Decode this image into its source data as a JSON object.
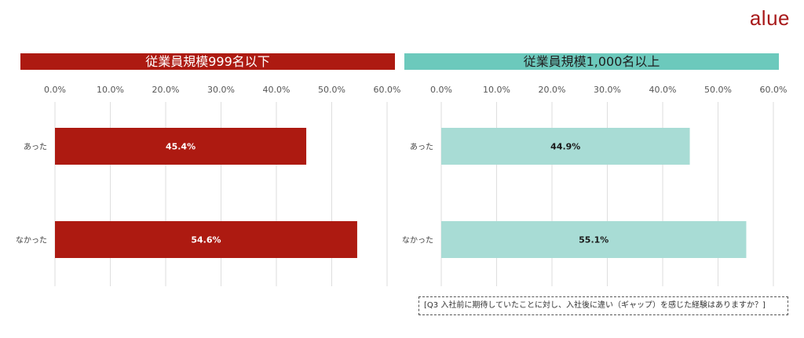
{
  "brand": {
    "logo_text": "alue"
  },
  "note": "[Q3 入社前に期待していたことに対し、入社後に違い（ギャップ）を感じた経験はありますか？]",
  "chart_data": [
    {
      "type": "bar",
      "orientation": "horizontal",
      "title": "従業員規模999名以下",
      "categories": [
        "あった",
        "なかった"
      ],
      "values": [
        45.4,
        54.6
      ],
      "data_labels": [
        "45.4%",
        "54.6%"
      ],
      "xlim": [
        0,
        60
      ],
      "xticks": [
        "0.0%",
        "10.0%",
        "20.0%",
        "30.0%",
        "40.0%",
        "50.0%",
        "60.0%"
      ],
      "grid": true,
      "bar_color": "#ad1a11",
      "label_color": "#ffffff"
    },
    {
      "type": "bar",
      "orientation": "horizontal",
      "title": "従業員規模1,000名以上",
      "categories": [
        "あった",
        "なかった"
      ],
      "values": [
        44.9,
        55.1
      ],
      "data_labels": [
        "44.9%",
        "55.1%"
      ],
      "xlim": [
        0,
        60
      ],
      "xticks": [
        "0.0%",
        "10.0%",
        "20.0%",
        "30.0%",
        "40.0%",
        "50.0%",
        "60.0%"
      ],
      "grid": true,
      "bar_color": "#a8dcd5",
      "label_color": "#1a1a1a"
    }
  ]
}
